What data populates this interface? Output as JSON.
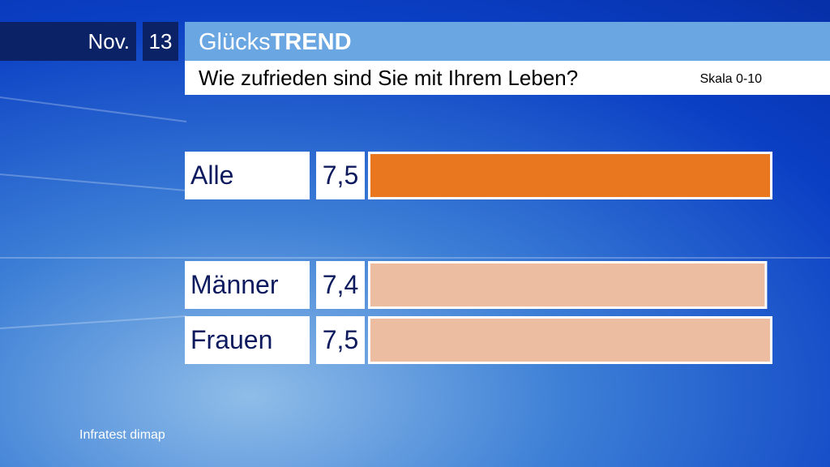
{
  "chart_data": {
    "type": "bar",
    "header": {
      "month": "Nov.",
      "year": "13"
    },
    "title": {
      "regular": "Glücks",
      "bold": "TREND"
    },
    "subtitle": "Wie zufrieden sind Sie mit Ihrem Leben?",
    "scale_note": "Skala 0-10",
    "categories": [
      "Alle",
      "Männer",
      "Frauen"
    ],
    "values": [
      7.5,
      7.4,
      7.5
    ],
    "value_labels": [
      "7,5",
      "7,4",
      "7,5"
    ],
    "colors": [
      "#e8771f",
      "#ecbda0",
      "#ecbda0"
    ],
    "xlim": [
      0,
      7.5
    ],
    "source": "Infratest dimap"
  }
}
